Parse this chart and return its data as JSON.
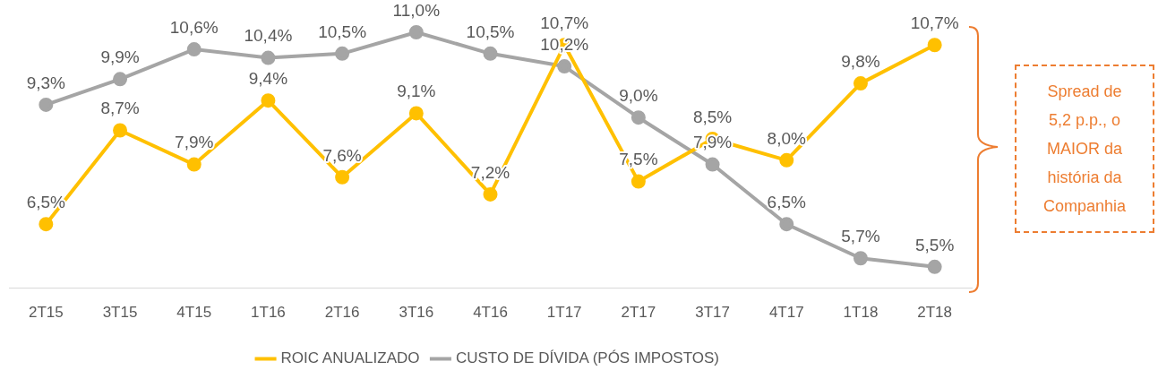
{
  "chart_data": {
    "type": "line",
    "categories": [
      "2T15",
      "3T15",
      "4T15",
      "1T16",
      "2T16",
      "3T16",
      "4T16",
      "1T17",
      "2T17",
      "3T17",
      "4T17",
      "1T18",
      "2T18"
    ],
    "series": [
      {
        "name": "ROIC ANUALIZADO",
        "color": "#ffc000",
        "values": [
          6.5,
          8.7,
          7.9,
          9.4,
          7.6,
          9.1,
          7.2,
          10.7,
          7.5,
          8.5,
          8.0,
          9.8,
          10.7
        ],
        "value_labels": [
          "6,5%",
          "8,7%",
          "7,9%",
          "9,4%",
          "7,6%",
          "9,1%",
          "7,2%",
          "10,7%",
          "7,5%",
          "8,5%",
          "8,0%",
          "9,8%",
          "10,7%"
        ]
      },
      {
        "name": "CUSTO DE DÍVIDA (PÓS IMPOSTOS)",
        "color": "#a5a5a5",
        "values": [
          9.3,
          9.9,
          10.6,
          10.4,
          10.5,
          11.0,
          10.5,
          10.2,
          9.0,
          7.9,
          6.5,
          5.7,
          5.5
        ],
        "value_labels": [
          "9,3%",
          "9,9%",
          "10,6%",
          "10,4%",
          "10,5%",
          "11,0%",
          "10,5%",
          "10,2%",
          "9,0%",
          "7,9%",
          "6,5%",
          "5,7%",
          "5,5%"
        ]
      }
    ],
    "tick_labels": "x",
    "grid": false,
    "legend": "bottom",
    "marker": "circle",
    "line_style": "solid",
    "annotations": [
      "Spread de 5,2 p.p., o MAIOR da história da Companhia"
    ]
  }
}
